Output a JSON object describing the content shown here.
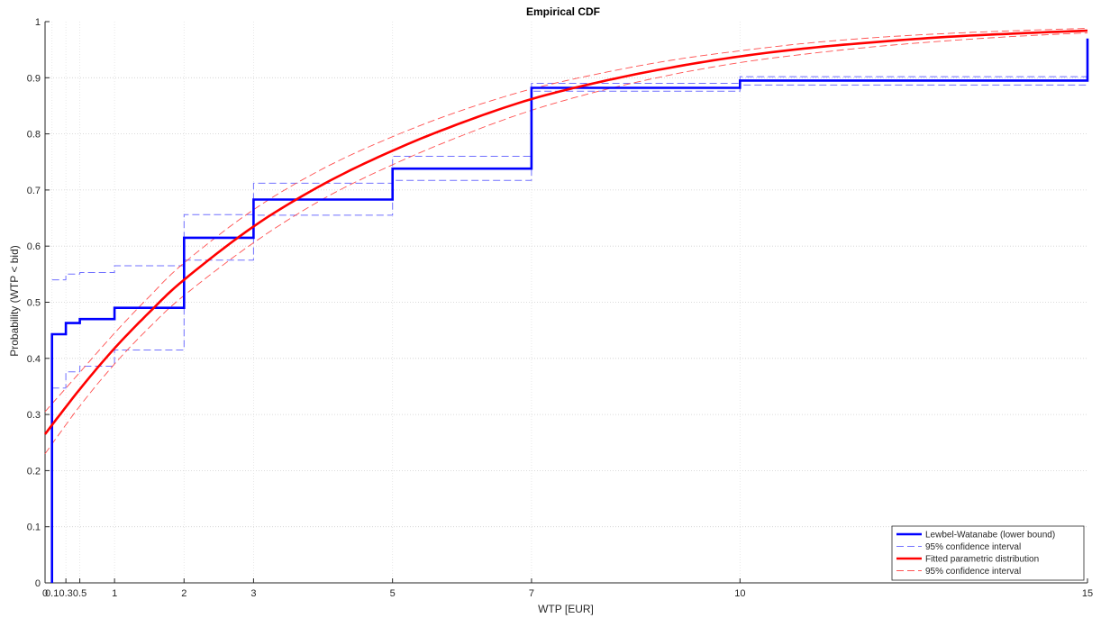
{
  "chart_data": {
    "type": "line",
    "title": "Empirical CDF",
    "xlabel": "WTP [EUR]",
    "ylabel": "Probability (WTP < bid)",
    "xlim": [
      0,
      15
    ],
    "ylim": [
      0,
      1
    ],
    "grid": "horizontal dotted",
    "legend_position": "bottom-right",
    "x_ticks": [
      {
        "value": 0,
        "label": "0"
      },
      {
        "value": 0.1,
        "label": "0.1"
      },
      {
        "value": 0.3,
        "label": "0.3"
      },
      {
        "value": 0.5,
        "label": "0.5"
      },
      {
        "value": 1,
        "label": "1"
      },
      {
        "value": 2,
        "label": "2"
      },
      {
        "value": 3,
        "label": "3"
      },
      {
        "value": 5,
        "label": "5"
      },
      {
        "value": 7,
        "label": "7"
      },
      {
        "value": 10,
        "label": "10"
      },
      {
        "value": 15,
        "label": "15"
      }
    ],
    "y_ticks": [
      {
        "value": 0,
        "label": "0"
      },
      {
        "value": 0.1,
        "label": "0.1"
      },
      {
        "value": 0.2,
        "label": "0.2"
      },
      {
        "value": 0.3,
        "label": "0.3"
      },
      {
        "value": 0.4,
        "label": "0.4"
      },
      {
        "value": 0.5,
        "label": "0.5"
      },
      {
        "value": 0.6,
        "label": "0.6"
      },
      {
        "value": 0.7,
        "label": "0.7"
      },
      {
        "value": 0.8,
        "label": "0.8"
      },
      {
        "value": 0.9,
        "label": "0.9"
      },
      {
        "value": 1,
        "label": "1"
      }
    ],
    "series": [
      {
        "name": "Lewbel-Watanabe (lower bound)",
        "style": "solid-thick",
        "color": "#0000ff",
        "kind": "step",
        "points": [
          [
            0.1,
            0
          ],
          [
            0.1,
            0.443
          ],
          [
            0.3,
            0.443
          ],
          [
            0.3,
            0.463
          ],
          [
            0.5,
            0.463
          ],
          [
            0.5,
            0.47
          ],
          [
            1,
            0.47
          ],
          [
            1,
            0.49
          ],
          [
            2,
            0.49
          ],
          [
            2,
            0.615
          ],
          [
            3,
            0.615
          ],
          [
            3,
            0.683
          ],
          [
            5,
            0.683
          ],
          [
            5,
            0.738
          ],
          [
            7,
            0.738
          ],
          [
            7,
            0.882
          ],
          [
            10,
            0.882
          ],
          [
            10,
            0.895
          ],
          [
            15,
            0.895
          ],
          [
            15,
            0.97
          ]
        ]
      },
      {
        "name": "95% confidence interval",
        "style": "dashed",
        "color": "#7070ff",
        "kind": "step",
        "points": [
          [
            0.1,
            0.54
          ],
          [
            0.3,
            0.54
          ],
          [
            0.3,
            0.55
          ],
          [
            0.5,
            0.55
          ],
          [
            0.5,
            0.553
          ],
          [
            1,
            0.553
          ],
          [
            1,
            0.565
          ],
          [
            2,
            0.565
          ],
          [
            2,
            0.656
          ],
          [
            3,
            0.656
          ],
          [
            3,
            0.712
          ],
          [
            5,
            0.712
          ],
          [
            5,
            0.76
          ],
          [
            7,
            0.76
          ],
          [
            7,
            0.89
          ],
          [
            10,
            0.89
          ],
          [
            10,
            0.902
          ],
          [
            15,
            0.902
          ]
        ]
      },
      {
        "name": "95% confidence interval (lower)",
        "style": "dashed",
        "color": "#7070ff",
        "kind": "step",
        "points": [
          [
            0.1,
            0.347
          ],
          [
            0.3,
            0.347
          ],
          [
            0.3,
            0.376
          ],
          [
            0.5,
            0.376
          ],
          [
            0.5,
            0.386
          ],
          [
            1,
            0.386
          ],
          [
            1,
            0.415
          ],
          [
            2,
            0.415
          ],
          [
            2,
            0.575
          ],
          [
            3,
            0.575
          ],
          [
            3,
            0.655
          ],
          [
            5,
            0.655
          ],
          [
            5,
            0.717
          ],
          [
            7,
            0.717
          ],
          [
            7,
            0.876
          ],
          [
            10,
            0.876
          ],
          [
            10,
            0.887
          ],
          [
            15,
            0.887
          ]
        ]
      },
      {
        "name": "Fitted parametric distribution",
        "style": "solid-thick",
        "color": "#ff0000",
        "kind": "curve",
        "points": [
          [
            0,
            0.265
          ],
          [
            0.5,
            0.345
          ],
          [
            1,
            0.418
          ],
          [
            1.5,
            0.482
          ],
          [
            2,
            0.54
          ],
          [
            3,
            0.635
          ],
          [
            4,
            0.71
          ],
          [
            5,
            0.77
          ],
          [
            6,
            0.82
          ],
          [
            7,
            0.862
          ],
          [
            8,
            0.893
          ],
          [
            9,
            0.918
          ],
          [
            10,
            0.938
          ],
          [
            11,
            0.953
          ],
          [
            12,
            0.964
          ],
          [
            13,
            0.973
          ],
          [
            14,
            0.979
          ],
          [
            15,
            0.984
          ]
        ]
      },
      {
        "name": "95% confidence interval",
        "style": "dashed-thin",
        "color": "#ff5050",
        "kind": "curve",
        "points": [
          [
            0,
            0.305
          ],
          [
            0.5,
            0.375
          ],
          [
            1,
            0.445
          ],
          [
            1.5,
            0.51
          ],
          [
            2,
            0.57
          ],
          [
            3,
            0.665
          ],
          [
            4,
            0.738
          ],
          [
            5,
            0.795
          ],
          [
            6,
            0.842
          ],
          [
            7,
            0.88
          ],
          [
            8,
            0.908
          ],
          [
            9,
            0.931
          ],
          [
            10,
            0.948
          ],
          [
            11,
            0.962
          ],
          [
            12,
            0.972
          ],
          [
            13,
            0.979
          ],
          [
            14,
            0.984
          ],
          [
            15,
            0.988
          ]
        ]
      },
      {
        "name": "95% confidence interval (fitted lower)",
        "style": "dashed-thin",
        "color": "#ff5050",
        "kind": "curve",
        "points": [
          [
            0,
            0.23
          ],
          [
            0.5,
            0.315
          ],
          [
            1,
            0.39
          ],
          [
            1.5,
            0.455
          ],
          [
            2,
            0.512
          ],
          [
            3,
            0.606
          ],
          [
            4,
            0.684
          ],
          [
            5,
            0.745
          ],
          [
            6,
            0.797
          ],
          [
            7,
            0.842
          ],
          [
            8,
            0.877
          ],
          [
            9,
            0.905
          ],
          [
            10,
            0.927
          ],
          [
            11,
            0.943
          ],
          [
            12,
            0.956
          ],
          [
            13,
            0.966
          ],
          [
            14,
            0.974
          ],
          [
            15,
            0.98
          ]
        ]
      }
    ],
    "legend": [
      {
        "label": "Lewbel-Watanabe (lower bound)",
        "color": "#0000ff",
        "style": "solid-thick"
      },
      {
        "label": "95% confidence interval",
        "color": "#7070ff",
        "style": "dashed"
      },
      {
        "label": "Fitted parametric distribution",
        "color": "#ff0000",
        "style": "solid-thick"
      },
      {
        "label": "95% confidence interval",
        "color": "#ff5050",
        "style": "dashed-thin"
      }
    ]
  }
}
